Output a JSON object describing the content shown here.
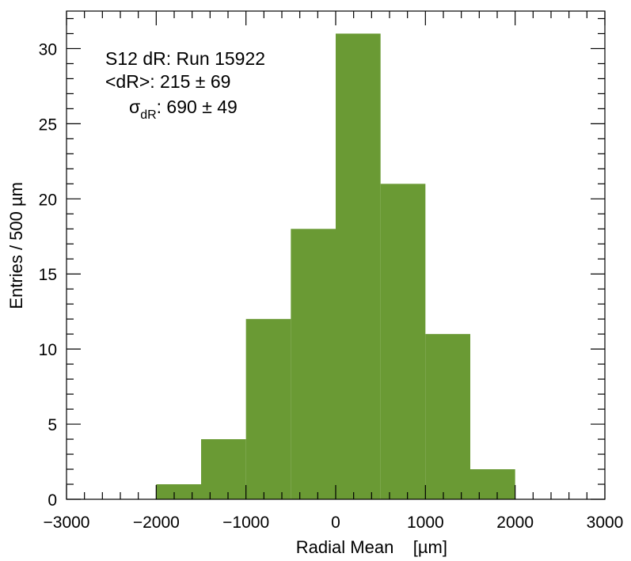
{
  "chart_data": {
    "type": "bar",
    "bin_edges": [
      -2000,
      -1500,
      -1000,
      -500,
      0,
      500,
      1000,
      1500,
      2000
    ],
    "values": [
      1,
      4,
      12,
      18,
      31,
      21,
      11,
      2
    ],
    "xlim": [
      -3000,
      3000
    ],
    "ylim": [
      0,
      32.5
    ],
    "x_ticks": [
      "−3000",
      "−2000",
      "−1000",
      "0",
      "1000",
      "2000",
      "3000"
    ],
    "y_ticks": [
      "0",
      "5",
      "10",
      "15",
      "20",
      "25",
      "30"
    ],
    "xlabel": "Radial Mean    [µm]",
    "ylabel": "Entries / 500 µm",
    "bar_color": "#6a9a34",
    "grid": false,
    "annotations": {
      "line1": "S12 dR: Run 15922",
      "line2": "<dR>: 215 ± 69",
      "line3_symbol": "σ",
      "line3_sub": "dR",
      "line3_value": ": 690 ± 49"
    }
  }
}
